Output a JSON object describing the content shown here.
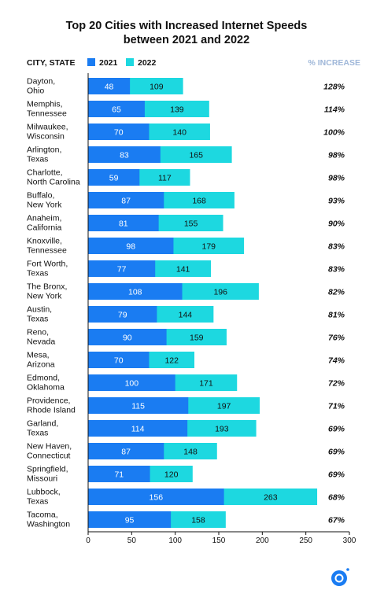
{
  "chart_data": {
    "type": "bar",
    "title_line1": "Top 20 Cities with Increased Internet Speeds",
    "title_line2": "between 2021 and 2022",
    "category_header": "CITY, STATE",
    "percent_header": "% INCREASE",
    "colors": {
      "2021": "#1a7cf2",
      "2022": "#1dd8e0"
    },
    "categories": [
      [
        "Dayton,",
        "Ohio"
      ],
      [
        "Memphis,",
        "Tennessee"
      ],
      [
        "Milwaukee,",
        "Wisconsin"
      ],
      [
        "Arlington,",
        "Texas"
      ],
      [
        "Charlotte,",
        "North Carolina"
      ],
      [
        "Buffalo,",
        "New York"
      ],
      [
        "Anaheim,",
        "California"
      ],
      [
        "Knoxville,",
        "Tennessee"
      ],
      [
        "Fort Worth,",
        "Texas"
      ],
      [
        "The Bronx,",
        "New York"
      ],
      [
        "Austin,",
        "Texas"
      ],
      [
        "Reno,",
        "Nevada"
      ],
      [
        "Mesa,",
        "Arizona"
      ],
      [
        "Edmond,",
        "Oklahoma"
      ],
      [
        "Providence,",
        "Rhode Island"
      ],
      [
        "Garland,",
        "Texas"
      ],
      [
        "New Haven,",
        "Connecticut"
      ],
      [
        "Springfield,",
        "Missouri"
      ],
      [
        "Lubbock,",
        "Texas"
      ],
      [
        "Tacoma,",
        "Washington"
      ]
    ],
    "series": [
      {
        "name": "2021",
        "values": [
          48,
          65,
          70,
          83,
          59,
          87,
          81,
          98,
          77,
          108,
          79,
          90,
          70,
          100,
          115,
          114,
          87,
          71,
          156,
          95
        ]
      },
      {
        "name": "2022",
        "values": [
          109,
          139,
          140,
          165,
          117,
          168,
          155,
          179,
          141,
          196,
          144,
          159,
          122,
          171,
          197,
          193,
          148,
          120,
          263,
          158
        ]
      }
    ],
    "percent_increase": [
      "128%",
      "114%",
      "100%",
      "98%",
      "98%",
      "93%",
      "90%",
      "83%",
      "83%",
      "82%",
      "81%",
      "76%",
      "74%",
      "72%",
      "71%",
      "69%",
      "69%",
      "69%",
      "68%",
      "67%"
    ],
    "x_ticks": [
      0,
      50,
      100,
      150,
      200,
      250,
      300
    ],
    "xlim": [
      0,
      300
    ],
    "legend_position": "top-left",
    "grid": false,
    "logo": "circular-at-sign-logo"
  }
}
